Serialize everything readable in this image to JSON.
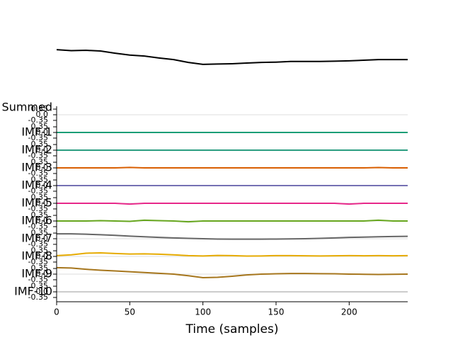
{
  "chart_data": {
    "type": "line",
    "xlabel": "Time (samples)",
    "xlim": [
      0,
      240
    ],
    "xticks": [
      0,
      50,
      100,
      150,
      200
    ],
    "x": [
      0,
      10,
      20,
      30,
      40,
      50,
      60,
      70,
      80,
      90,
      100,
      110,
      120,
      130,
      140,
      150,
      160,
      170,
      180,
      190,
      200,
      210,
      220,
      230,
      240
    ],
    "grid": true,
    "signal": {
      "color": "#000000",
      "ylim": [
        -1,
        1
      ],
      "values": [
        0.33,
        0.3,
        0.31,
        0.29,
        0.22,
        0.16,
        0.13,
        0.07,
        0.02,
        -0.07,
        -0.13,
        -0.12,
        -0.11,
        -0.09,
        -0.07,
        -0.06,
        -0.04,
        -0.04,
        -0.04,
        -0.03,
        -0.02,
        0.0,
        0.02,
        0.02,
        0.02
      ]
    },
    "row_ylim": [
      -0.55,
      0.55
    ],
    "yticks": [
      {
        "value": 0.35,
        "label": "0.35"
      },
      {
        "value": 0,
        "label": "0.0"
      },
      {
        "value": -0.35,
        "label": "-0.35"
      }
    ],
    "rows": [
      {
        "name": "Summed"
      },
      {
        "name": "IMF-1",
        "color": "#1b9e77",
        "values": [
          0,
          0,
          0,
          0,
          0,
          0,
          0,
          0,
          0,
          0,
          0,
          0,
          0,
          0,
          0,
          0,
          0,
          0,
          0,
          0,
          0,
          0,
          0,
          0,
          0
        ]
      },
      {
        "name": "IMF-2",
        "color": "#2a9d80",
        "values": [
          0,
          0,
          0,
          0,
          0,
          0,
          0,
          0,
          0,
          0,
          0,
          0,
          0,
          0,
          0,
          0,
          0,
          0,
          0,
          0,
          0,
          0,
          0,
          0,
          0
        ]
      },
      {
        "name": "IMF-3",
        "color": "#d95f02",
        "values": [
          0,
          0,
          0,
          0,
          0,
          0.03,
          0,
          0,
          0,
          0,
          0,
          0,
          0,
          0,
          0,
          0,
          0,
          0,
          0,
          0,
          0,
          0,
          0.02,
          0,
          0
        ]
      },
      {
        "name": "IMF-4",
        "color": "#7570b3",
        "values": [
          0,
          0,
          0,
          0,
          0,
          0,
          0,
          0,
          0,
          0,
          0,
          0,
          0,
          0,
          0,
          0,
          0,
          0,
          0,
          0,
          0,
          0,
          0,
          0,
          0
        ]
      },
      {
        "name": "IMF-5",
        "color": "#e7298a",
        "values": [
          0,
          0,
          0,
          0,
          0,
          -0.05,
          0,
          0,
          0,
          0,
          0,
          0,
          0,
          0,
          0,
          0,
          0,
          0,
          0,
          0,
          -0.05,
          0,
          0,
          0,
          0
        ]
      },
      {
        "name": "IMF-6",
        "color": "#66a61e",
        "values": [
          0,
          0,
          0,
          0.02,
          0,
          -0.02,
          0.05,
          0.02,
          0,
          -0.05,
          0,
          0,
          0,
          0,
          0,
          0,
          0,
          0,
          0,
          0,
          0,
          0,
          0.05,
          0,
          0
        ]
      },
      {
        "name": "IMF-7",
        "color": "#666666",
        "values": [
          0.3,
          0.3,
          0.28,
          0.25,
          0.21,
          0.16,
          0.12,
          0.08,
          0.05,
          0.02,
          0.0,
          -0.02,
          -0.03,
          -0.03,
          -0.03,
          -0.02,
          -0.01,
          0.0,
          0.02,
          0.05,
          0.08,
          0.1,
          0.12,
          0.14,
          0.15
        ]
      },
      {
        "name": "IMF-8",
        "color": "#e6ab02",
        "values": [
          0.05,
          0.1,
          0.2,
          0.22,
          0.18,
          0.15,
          0.16,
          0.14,
          0.1,
          0.05,
          0.03,
          0.06,
          0.05,
          0.02,
          0.03,
          0.05,
          0.05,
          0.04,
          0.03,
          0.04,
          0.05,
          0.04,
          0.05,
          0.04,
          0.05
        ]
      },
      {
        "name": "IMF-9",
        "color": "#a6761d",
        "values": [
          0.4,
          0.38,
          0.3,
          0.24,
          0.2,
          0.15,
          0.1,
          0.05,
          0.0,
          -0.1,
          -0.22,
          -0.2,
          -0.13,
          -0.05,
          0.0,
          0.02,
          0.04,
          0.04,
          0.03,
          0.02,
          0.0,
          -0.01,
          -0.02,
          -0.01,
          0.0
        ]
      },
      {
        "name": "IMF-10",
        "color": "#cccccc",
        "values": [
          0,
          0,
          0,
          0,
          0,
          0,
          0,
          0,
          0,
          0,
          0,
          0,
          0,
          0,
          0,
          0,
          0,
          0,
          0,
          0,
          0,
          0,
          0,
          0,
          0
        ]
      }
    ]
  }
}
